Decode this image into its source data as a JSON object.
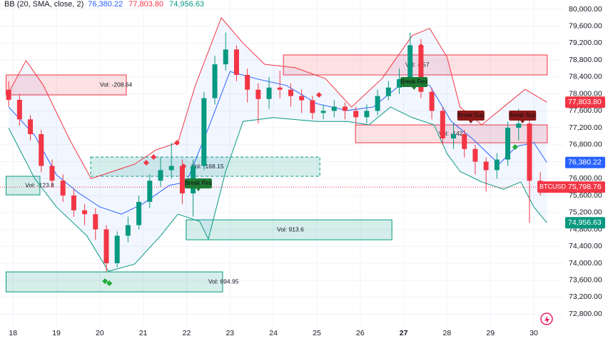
{
  "chart_data": {
    "type": "candlestick",
    "indicator": "BB (20, SMA, close, 2)",
    "symbol": "BTCUSD",
    "x": [
      17.9,
      18.15,
      18.4,
      18.65,
      18.9,
      19.15,
      19.4,
      19.65,
      19.9,
      20.15,
      20.4,
      20.65,
      20.9,
      21.15,
      21.4,
      21.65,
      21.9,
      22.15,
      22.4,
      22.65,
      22.9,
      23.15,
      23.4,
      23.65,
      23.9,
      24.15,
      24.4,
      24.65,
      24.9,
      25.15,
      25.4,
      25.65,
      25.9,
      26.15,
      26.4,
      26.65,
      26.9,
      27.15,
      27.4,
      27.65,
      27.9,
      28.15,
      28.4,
      28.65,
      28.9,
      29.15,
      29.4,
      29.65,
      29.9,
      30.15
    ],
    "open": [
      78100,
      77860,
      77400,
      77050,
      76300,
      75950,
      75600,
      75250,
      75160,
      74800,
      74000,
      74650,
      74900,
      75450,
      75950,
      76200,
      76300,
      75650,
      76300,
      77900,
      78700,
      79050,
      78450,
      78100,
      77880,
      78150,
      78100,
      77950,
      77850,
      77550,
      77600,
      77700,
      77600,
      77450,
      77600,
      77950,
      78150,
      78350,
      79150,
      78050,
      77600,
      76950,
      77050,
      76700,
      76400,
      76200,
      76450,
      77200,
      77300,
      75950
    ],
    "high": [
      78300,
      78000,
      77500,
      77150,
      76450,
      76100,
      75750,
      75400,
      75300,
      74900,
      74750,
      75100,
      75600,
      76100,
      76500,
      76850,
      76450,
      76450,
      78050,
      78900,
      79450,
      79150,
      78600,
      78250,
      78400,
      78550,
      78250,
      78100,
      77950,
      77750,
      77850,
      77800,
      77700,
      77750,
      78100,
      78300,
      78600,
      79450,
      79300,
      78150,
      77700,
      77300,
      77150,
      76800,
      76500,
      76600,
      77350,
      77650,
      77400,
      76150
    ],
    "low": [
      77700,
      77250,
      76900,
      76150,
      75800,
      75450,
      75100,
      74900,
      74550,
      73800,
      73900,
      74500,
      74800,
      75300,
      75800,
      76000,
      75400,
      75100,
      76200,
      77750,
      78550,
      78300,
      77800,
      77300,
      77650,
      77900,
      77700,
      77550,
      77400,
      77400,
      77450,
      77400,
      77250,
      77300,
      77500,
      77850,
      78000,
      78200,
      77900,
      77400,
      76800,
      76700,
      76500,
      76100,
      75700,
      76000,
      76300,
      76900,
      74950,
      75600
    ],
    "close": [
      77860,
      77400,
      77050,
      76300,
      75950,
      75600,
      75250,
      75160,
      74800,
      74000,
      74650,
      74900,
      75450,
      75950,
      76200,
      76300,
      75650,
      76300,
      77900,
      78700,
      79050,
      78450,
      78100,
      77880,
      78150,
      78100,
      77950,
      77850,
      77550,
      77600,
      77700,
      77600,
      77450,
      77600,
      77950,
      78150,
      78350,
      79150,
      78050,
      77600,
      76950,
      77050,
      76700,
      76400,
      76200,
      76450,
      77200,
      77300,
      75950,
      75798.76
    ],
    "up_color": "#089981",
    "down_color": "#f23645",
    "series": [
      {
        "color": "#f23645",
        "x": [
          17.9,
          18.3,
          18.7,
          19.3,
          19.8,
          20.3,
          20.8,
          21.3,
          21.8,
          22.2,
          22.8,
          23.3,
          23.8,
          24.5,
          25.2,
          25.8,
          26.5,
          27.2,
          27.6,
          28.0,
          28.3,
          28.8,
          29.3,
          29.8,
          30.3
        ],
        "values": [
          78030,
          78790,
          78200,
          76930,
          76000,
          76170,
          76340,
          76680,
          76850,
          78200,
          79800,
          79200,
          78700,
          78620,
          78360,
          77690,
          78360,
          79380,
          79550,
          78870,
          77690,
          77270,
          77690,
          78110,
          77803.8
        ]
      },
      {
        "color": "#2962ff",
        "x": [
          17.9,
          18.5,
          19.0,
          19.5,
          20.0,
          20.5,
          21.0,
          21.6,
          22.0,
          22.5,
          23.0,
          23.6,
          24.3,
          25.0,
          25.7,
          26.3,
          27.0,
          27.6,
          28.1,
          28.6,
          29.2,
          29.6,
          30.0,
          30.3
        ],
        "values": [
          77690,
          77020,
          76090,
          75670,
          75330,
          75160,
          75410,
          75840,
          75920,
          77190,
          78530,
          78360,
          78200,
          77770,
          77610,
          77690,
          78280,
          78200,
          77350,
          76930,
          76340,
          76760,
          76850,
          76380.22
        ]
      },
      {
        "color": "#089981",
        "x": [
          17.9,
          18.5,
          19.0,
          19.7,
          20.2,
          20.8,
          21.4,
          21.8,
          22.3,
          22.5,
          22.9,
          23.3,
          24.0,
          25.0,
          25.7,
          26.2,
          26.7,
          27.2,
          27.7,
          28.0,
          28.3,
          28.8,
          29.3,
          29.7,
          30.0,
          30.3
        ],
        "values": [
          77190,
          76000,
          75330,
          74650,
          73810,
          73980,
          74650,
          75160,
          74990,
          74570,
          76170,
          77350,
          77440,
          77350,
          77350,
          77270,
          77690,
          77440,
          77270,
          76590,
          76170,
          75920,
          75750,
          75920,
          75330,
          74956.63
        ]
      }
    ],
    "band_fill": "rgba(41,98,255,0.06)",
    "zones": [
      {
        "x": [
          17.84,
          20.61
        ],
        "y": [
          78449,
          77977
        ],
        "label": "Vol: -208.64",
        "label_x": 20.0,
        "color": "#f23645"
      },
      {
        "x": [
          24.23,
          30.31
        ],
        "y": [
          78921,
          78449
        ],
        "label": "Vol: -157",
        "label_x": 27.04,
        "color": "#f23645"
      },
      {
        "x": [
          25.89,
          30.31
        ],
        "y": [
          77268,
          76847
        ],
        "label": "Vol: -142",
        "label_x": 27.81,
        "color": "#f23645"
      },
      {
        "x": [
          17.84,
          18.62
        ],
        "y": [
          76055,
          75616
        ],
        "label": "Vol: -123.8",
        "label_x": 18.28,
        "color": "#089981"
      },
      {
        "x": [
          19.79,
          25.07
        ],
        "y": [
          76510,
          76055
        ],
        "label": "Vol: -168.15",
        "label_x": 22.11,
        "color": "#089981"
      },
      {
        "x": [
          21.99,
          26.73
        ],
        "y": [
          75026,
          74554
        ],
        "label": "Vol: 913.6",
        "label_x": 24.08,
        "color": "#089981"
      },
      {
        "x": [
          17.84,
          22.83
        ],
        "y": [
          73796,
          73323
        ],
        "label": "Vol: 694.95",
        "label_x": 22.5,
        "color": "#089981"
      }
    ],
    "tags": [
      {
        "x": 22.27,
        "y": 75886,
        "label": "Break Res",
        "color": "#1e7a34"
      },
      {
        "x": 27.24,
        "y": 78280,
        "label": "Break Res",
        "color": "#1e7a34"
      },
      {
        "x": 28.55,
        "y": 77488,
        "label": "Break Sup",
        "color": "#8b1a1a"
      },
      {
        "x": 29.74,
        "y": 77488,
        "label": "Break Sup",
        "color": "#8b1a1a"
      }
    ],
    "signals": [
      {
        "x": 21.07,
        "y": 76375,
        "color": "#f23645"
      },
      {
        "x": 21.24,
        "y": 76510,
        "color": "#f23645"
      },
      {
        "x": 21.78,
        "y": 76847,
        "color": "#f23645"
      },
      {
        "x": 21.93,
        "y": 76291,
        "color": "#f23645"
      },
      {
        "x": 25.05,
        "y": 77977,
        "color": "#f23645"
      },
      {
        "x": 27.4,
        "y": 79123,
        "color": "#f23645"
      },
      {
        "x": 20.12,
        "y": 73576,
        "color": "#22ab36"
      },
      {
        "x": 20.22,
        "y": 73526,
        "color": "#22ab36"
      },
      {
        "x": 29.57,
        "y": 76746,
        "color": "#22ab36"
      }
    ],
    "price_labels": [
      {
        "value": 77803.8,
        "label": "77,803.80",
        "color": "#f23645"
      },
      {
        "value": 76380.22,
        "label": "76,380.22",
        "color": "#2962ff"
      },
      {
        "value": 75798.76,
        "label": "75,798.76",
        "color": "#f23645"
      },
      {
        "value": 74956.63,
        "label": "74,956.63",
        "color": "#089981"
      }
    ],
    "header_order": [
      1,
      0,
      3
    ],
    "last_price_label": 2,
    "xlim": [
      17.7,
      30.69
    ],
    "ylim": [
      72500,
      80000
    ],
    "xticks": [
      18,
      19,
      20,
      21,
      22,
      23,
      24,
      25,
      26,
      27,
      28,
      29,
      30
    ],
    "bold_xticks": [
      27
    ],
    "yticks": [
      {
        "value": 72800,
        "label": "72,800.00"
      },
      {
        "value": 73200,
        "label": "73,200.00"
      },
      {
        "value": 73600,
        "label": "73,600.00"
      },
      {
        "value": 74000,
        "label": "74,000.00"
      },
      {
        "value": 74400,
        "label": "74,400.00"
      },
      {
        "value": 74800,
        "label": "74,800.00"
      },
      {
        "value": 75200,
        "label": "75,200.00"
      },
      {
        "value": 75600,
        "label": "75,600.00"
      },
      {
        "value": 76000,
        "label": "76,000.00"
      },
      {
        "value": 76400,
        "label": "76,400.00"
      },
      {
        "value": 76800,
        "label": "76,800.00"
      },
      {
        "value": 77200,
        "label": "77,200.00"
      },
      {
        "value": 77600,
        "label": "77,600.00"
      },
      {
        "value": 78000,
        "label": "78,000.00"
      },
      {
        "value": 78400,
        "label": "78,400.00"
      },
      {
        "value": 78800,
        "label": "78,800.00"
      },
      {
        "value": 79200,
        "label": "79,200.00"
      },
      {
        "value": 79600,
        "label": "79,600.00"
      },
      {
        "value": 80000,
        "label": "80,000.00"
      }
    ],
    "grid": true
  }
}
